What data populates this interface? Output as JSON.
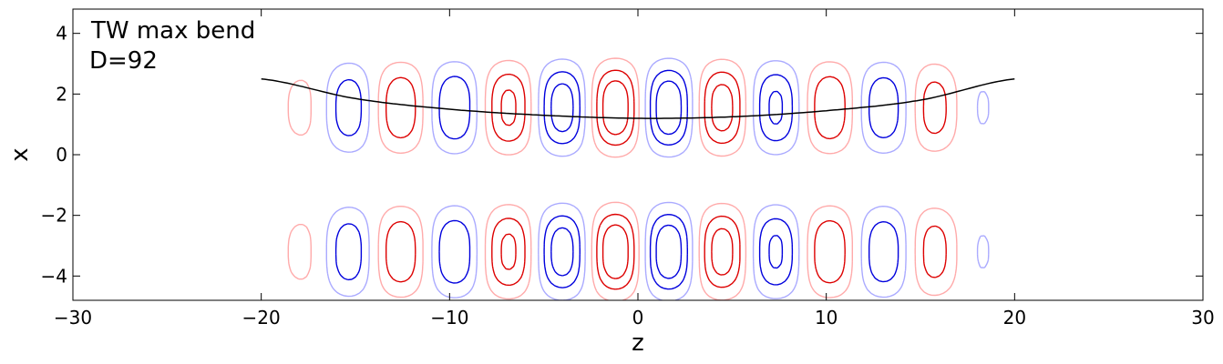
{
  "chart_data": {
    "type": "contour",
    "annotation_lines": [
      "TW max bend",
      "D=92"
    ],
    "xlabel": "z",
    "ylabel": "x",
    "xlim": [
      -30,
      30
    ],
    "ylim": [
      -4.8,
      4.8
    ],
    "x_ticks": [
      -30,
      -20,
      -10,
      0,
      10,
      20,
      30
    ],
    "x_tick_labels": [
      "−30",
      "−20",
      "−10",
      "0",
      "10",
      "20",
      "30"
    ],
    "y_ticks": [
      -4,
      -2,
      0,
      2,
      4
    ],
    "y_tick_labels": [
      "−4",
      "−2",
      "0",
      "2",
      "4"
    ],
    "grid": false,
    "colors": {
      "positive_strong": "#dd0000",
      "positive_weak": "#ffaaaa",
      "negative_strong": "#0000dd",
      "negative_weak": "#aaaaff",
      "centerline": "#000000"
    },
    "wave": {
      "period": 5.7,
      "phase": -1.2,
      "z_extent": [
        -20,
        20
      ]
    },
    "centerline": {
      "z": [
        -20,
        -15,
        -10,
        -5,
        0,
        5,
        10,
        15,
        20
      ],
      "x": [
        2.5,
        1.85,
        1.5,
        1.3,
        1.2,
        1.25,
        1.45,
        1.8,
        2.5
      ]
    },
    "contour_levels": {
      "positive": [
        0.2,
        0.5,
        0.8
      ],
      "negative": [
        -0.2,
        -0.5,
        -0.8
      ]
    }
  }
}
